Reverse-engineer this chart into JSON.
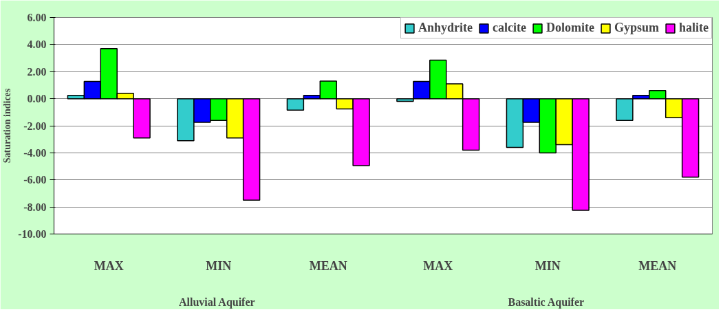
{
  "chart_data": {
    "type": "bar",
    "ylabel": "Saturation indices",
    "categories": [
      "MAX",
      "MIN",
      "MEAN",
      "MAX",
      "MIN",
      "MEAN"
    ],
    "annotations": [
      "Alluvial  Aquifer",
      "Basaltic  Aquifer"
    ],
    "series": [
      {
        "name": "Anhydrite",
        "color": "#33cccc",
        "values": [
          0.25,
          -3.1,
          -0.85,
          -0.2,
          -3.6,
          -1.6
        ]
      },
      {
        "name": "calcite",
        "color": "#0000ff",
        "values": [
          1.28,
          -1.75,
          0.25,
          1.28,
          -1.75,
          0.25
        ]
      },
      {
        "name": "Dolomite",
        "color": "#00ff00",
        "values": [
          3.7,
          -1.6,
          1.3,
          2.85,
          -4.0,
          0.6
        ]
      },
      {
        "name": "Gypsum",
        "color": "#ffff00",
        "values": [
          0.4,
          -2.9,
          -0.75,
          1.1,
          -3.4,
          -1.4
        ]
      },
      {
        "name": "halite",
        "color": "#ff00ff",
        "values": [
          -2.9,
          -7.5,
          -4.95,
          -3.8,
          -8.25,
          -5.8
        ]
      }
    ],
    "ylim": [
      -10,
      6
    ],
    "yticks": [
      {
        "value": -10,
        "label": "-10.00"
      },
      {
        "value": -8,
        "label": "-8.00"
      },
      {
        "value": -6,
        "label": "-6.00"
      },
      {
        "value": -4,
        "label": "-4.00"
      },
      {
        "value": -2,
        "label": "-2.00"
      },
      {
        "value": 0,
        "label": "0.00"
      },
      {
        "value": 2,
        "label": "2.00"
      },
      {
        "value": 4,
        "label": "4.00"
      },
      {
        "value": 6,
        "label": "6.00"
      }
    ],
    "grid": "y",
    "legend": "top right"
  }
}
